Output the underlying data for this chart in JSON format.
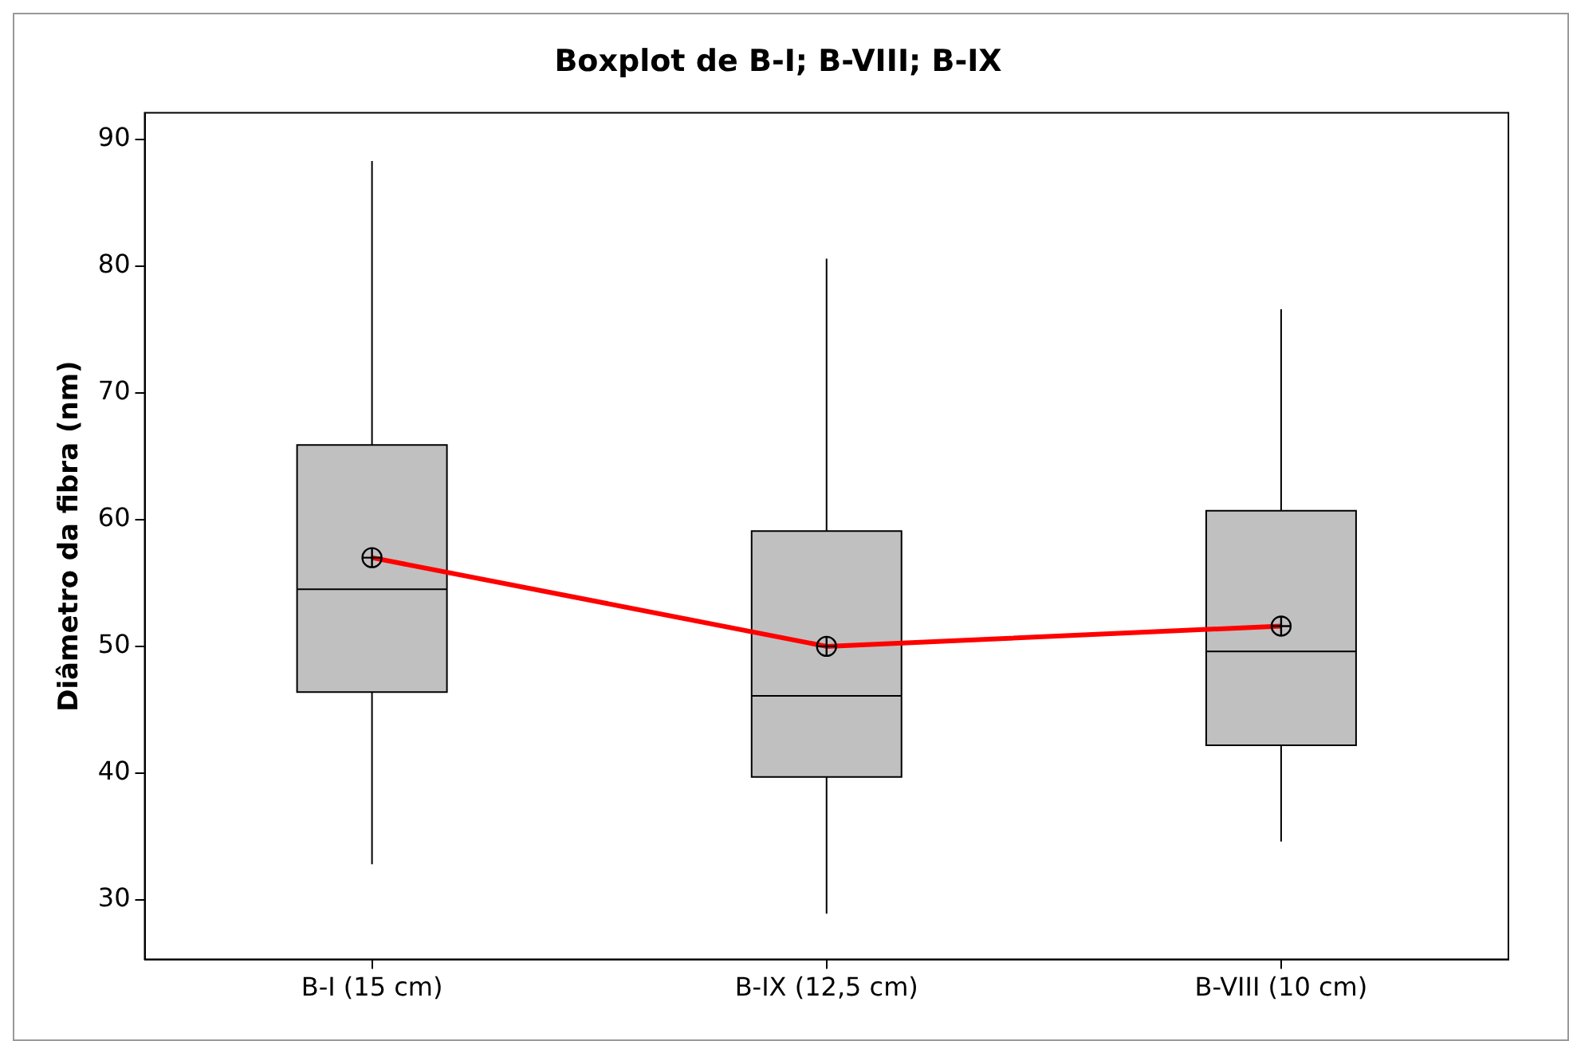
{
  "chart_data": {
    "type": "box",
    "title": "Boxplot de B-I; B-VIII; B-IX",
    "ylabel": "Diâmetro da fibra (nm)",
    "categories": [
      "B-I (15 cm)",
      "B-IX (12,5 cm)",
      "B-VIII (10 cm)"
    ],
    "color": "#c0c0c0",
    "boxes": [
      {
        "low": 32.8,
        "q1": 46.4,
        "median": 54.5,
        "q3": 65.9,
        "high": 88.3,
        "mean": 57.0
      },
      {
        "low": 28.9,
        "q1": 39.7,
        "median": 46.1,
        "q3": 59.1,
        "high": 80.6,
        "mean": 50.0
      },
      {
        "low": 34.6,
        "q1": 42.2,
        "median": 49.6,
        "q3": 60.7,
        "high": 76.6,
        "mean": 51.6
      }
    ],
    "series": [
      {
        "type": "line",
        "color": "#ff0000",
        "values": [
          57.0,
          50.0,
          51.6
        ]
      }
    ],
    "ylim": [
      25.3,
      92.1
    ],
    "yticks": [
      30,
      40,
      50,
      60,
      70,
      80,
      90
    ],
    "grid": false,
    "legend": false,
    "marker": "none",
    "line_style": "solid"
  }
}
